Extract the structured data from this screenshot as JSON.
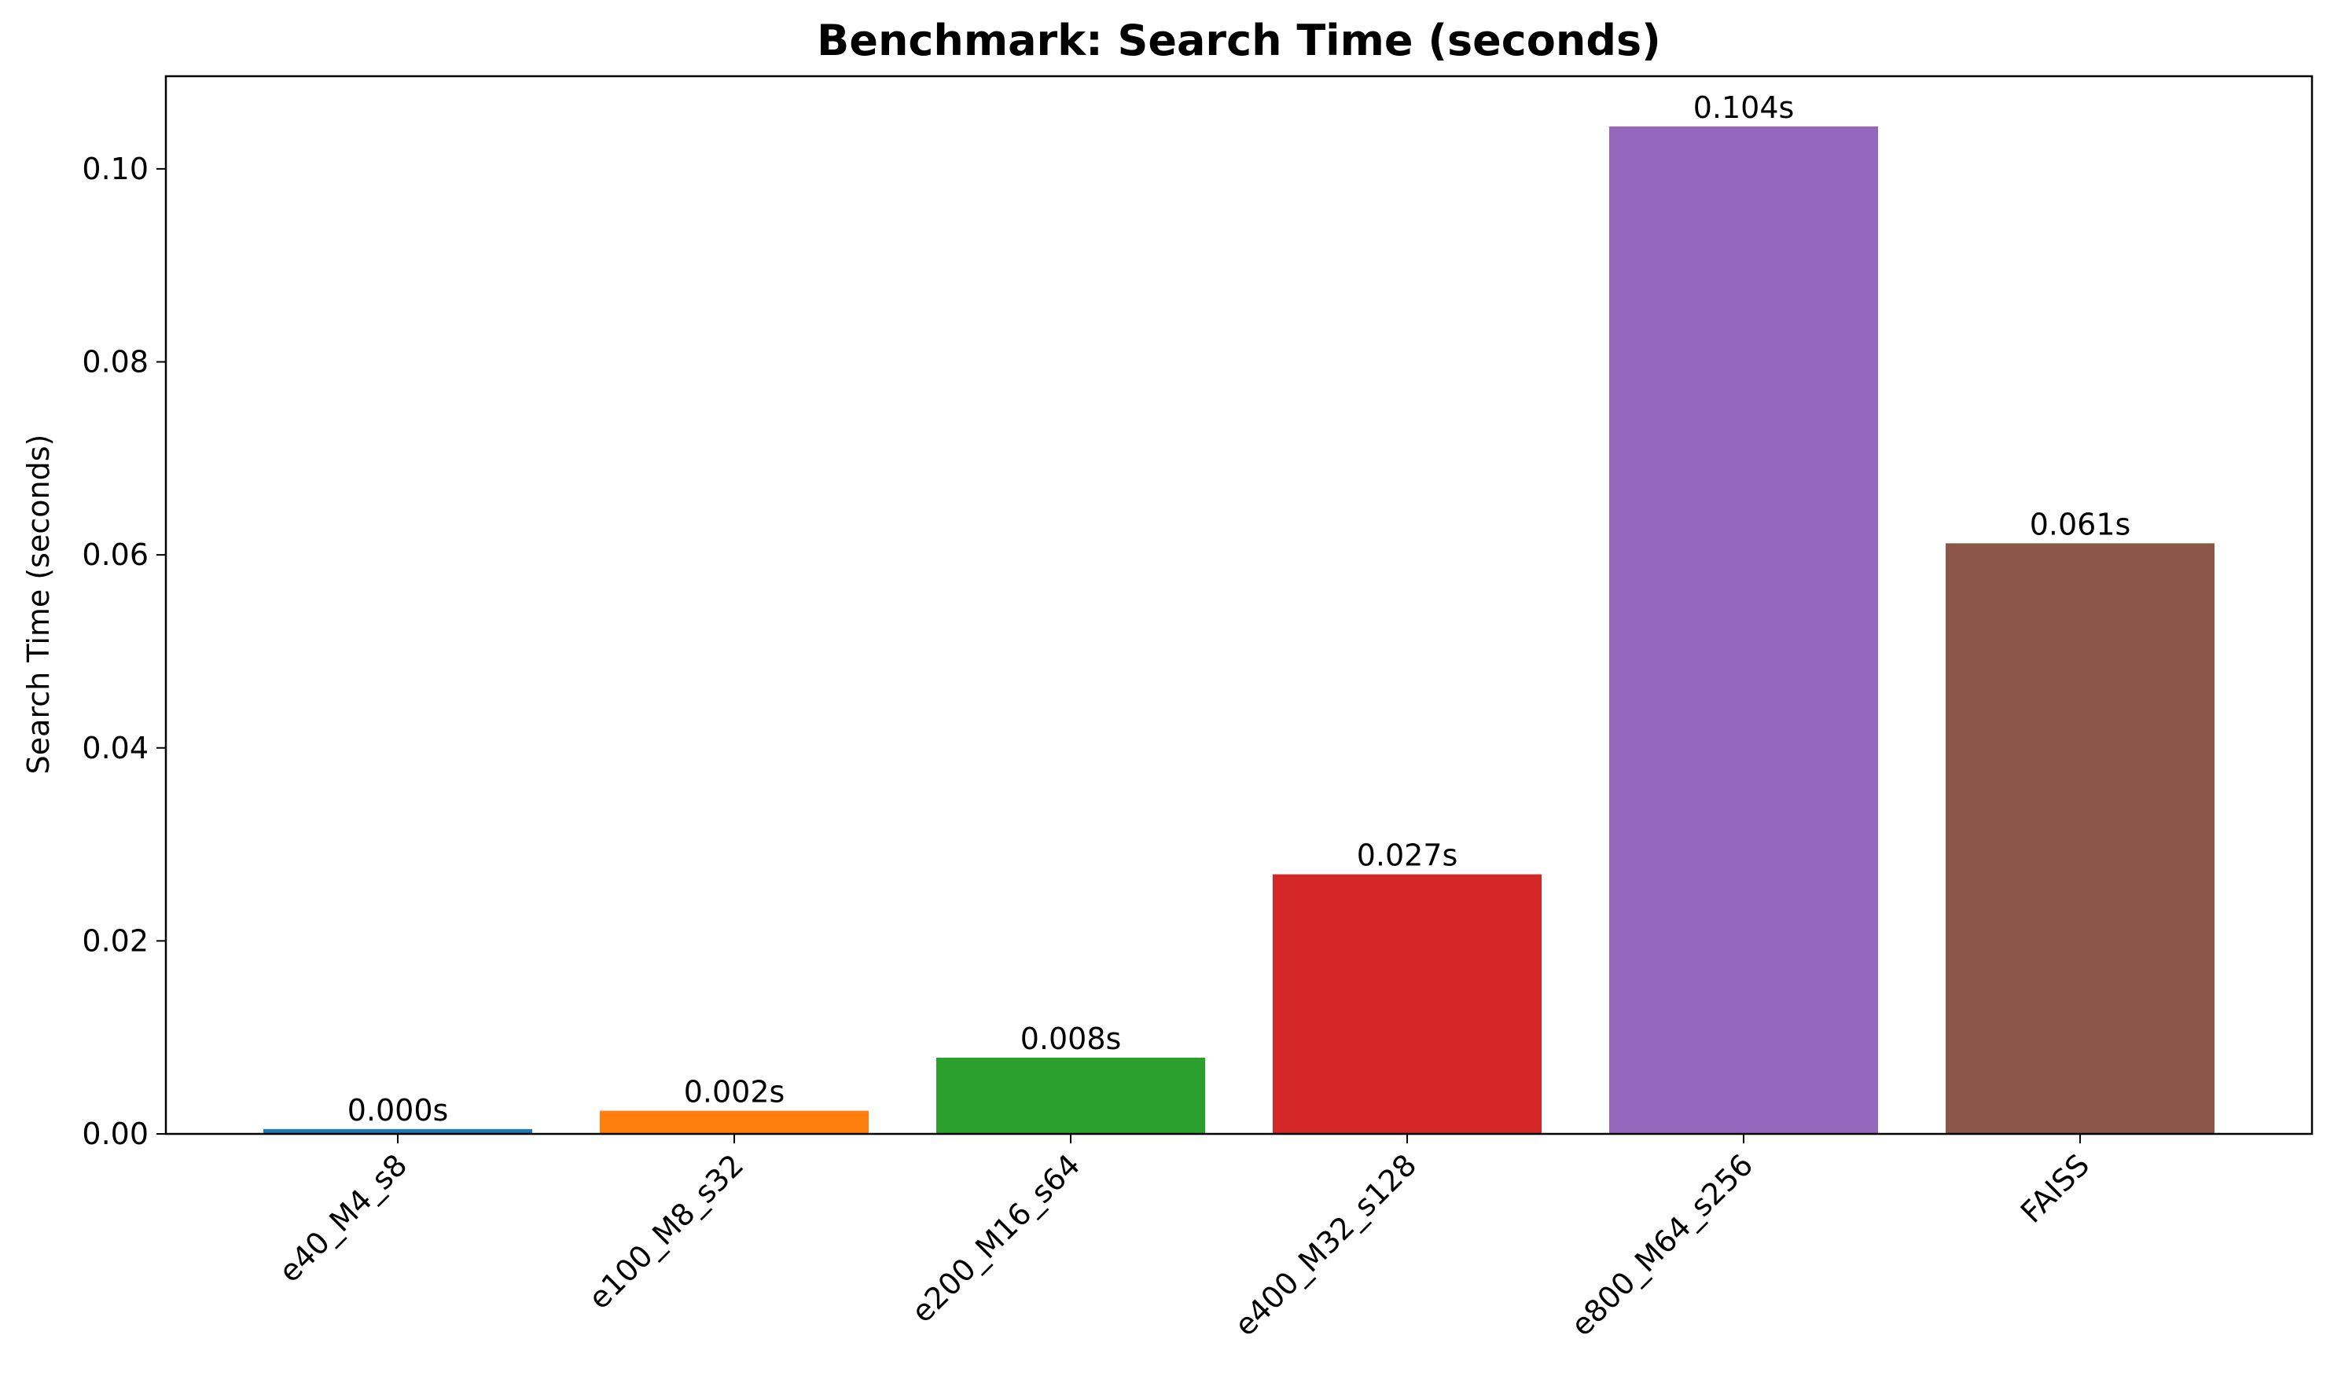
{
  "chart_data": {
    "type": "bar",
    "title": "Benchmark: Search Time (seconds)",
    "xlabel": "",
    "ylabel": "Search Time (seconds)",
    "categories": [
      "e40_M4_s8",
      "e100_M8_s32",
      "e200_M16_s64",
      "e400_M32_s128",
      "e800_M64_s256",
      "FAISS"
    ],
    "values": [
      0.0005,
      0.0024,
      0.0079,
      0.0269,
      0.1044,
      0.0612
    ],
    "data_labels": [
      "0.000s",
      "0.002s",
      "0.008s",
      "0.027s",
      "0.104s",
      "0.061s"
    ],
    "colors": [
      "#1f77b4",
      "#ff7f0e",
      "#2ca02c",
      "#d62728",
      "#9467bd",
      "#8c564b"
    ],
    "ylim": [
      0,
      0.1096
    ],
    "yticks": [
      0.0,
      0.02,
      0.04,
      0.06,
      0.08,
      0.1
    ],
    "ytick_labels": [
      "0.00",
      "0.02",
      "0.04",
      "0.06",
      "0.08",
      "0.10"
    ],
    "xtick_rotation_deg": 45,
    "grid": false,
    "legend": "none"
  }
}
